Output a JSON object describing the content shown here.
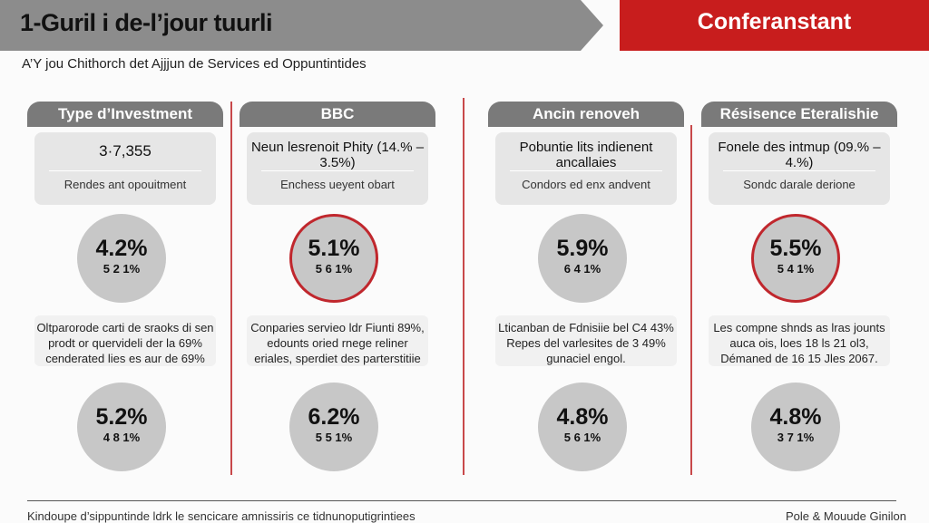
{
  "header": {
    "title": "1-Guril i de-l’jour tuurli",
    "red_title": "Conferanstant"
  },
  "subtitle": "A’Y jou Chithorch det Ajjjun de Services ed Oppuntintides",
  "columns": [
    {
      "heading": "Type d’Investment",
      "card_value": "3·7,355",
      "card_desc": "Rendes ant opouitment",
      "circle1_pct": "4.2%",
      "circle1_sub": "5  2  1%",
      "circle1_red": false,
      "note": "Oltparorode carti de sraoks di sen prodt or quervideli der la 69% cenderated lies es aur de 69%",
      "circle2_pct": "5.2%",
      "circle2_sub": "4  8  1%"
    },
    {
      "heading": "BBC",
      "card_value": "Neun lesrenoit Phity (14.% – 3.5%)",
      "card_desc": "Enchess ueyent obart",
      "circle1_pct": "5.1%",
      "circle1_sub": "5  6  1%",
      "circle1_red": true,
      "note": "Conparies servieo ldr Fiunti 89%, edounts oried rnege reliner eriales, sperdiet des parterstitiie",
      "circle2_pct": "6.2%",
      "circle2_sub": "5  5  1%"
    },
    {
      "heading": "Ancin renoveh",
      "card_value": "Pobuntie lits indienent ancallaies",
      "card_desc": "Condors ed enx andvent",
      "circle1_pct": "5.9%",
      "circle1_sub": "6  4  1%",
      "circle1_red": false,
      "note": "Lticanban de Fdnisiie bel C4 43% Repes del varlesites de 3 49% gunaciel engol.",
      "circle2_pct": "4.8%",
      "circle2_sub": "5  6  1%"
    },
    {
      "heading": "Résisence Eteralishie",
      "card_value": "Fonele des intmup (09.% – 4.%)",
      "card_desc": "Sondc darale derione",
      "circle1_pct": "5.5%",
      "circle1_sub": "5  4  1%",
      "circle1_red": true,
      "note": "Les compne shnds as lras jounts auca ois, loes 18 ls 21 ol3, Démaned de 16 15 Jles 2067.",
      "circle2_pct": "4.8%",
      "circle2_sub": "3  7  1%"
    }
  ],
  "footer": {
    "left": "Kindoupe d’sippuntinde ldrk le sencicare amnissiris ce tidnunoputigrintiees",
    "right": "Pole  &  Mouude Ginilon"
  },
  "colors": {
    "accent_red": "#c81d1d",
    "header_gray": "#8c8c8c",
    "circle_gray": "#c7c7c7"
  }
}
